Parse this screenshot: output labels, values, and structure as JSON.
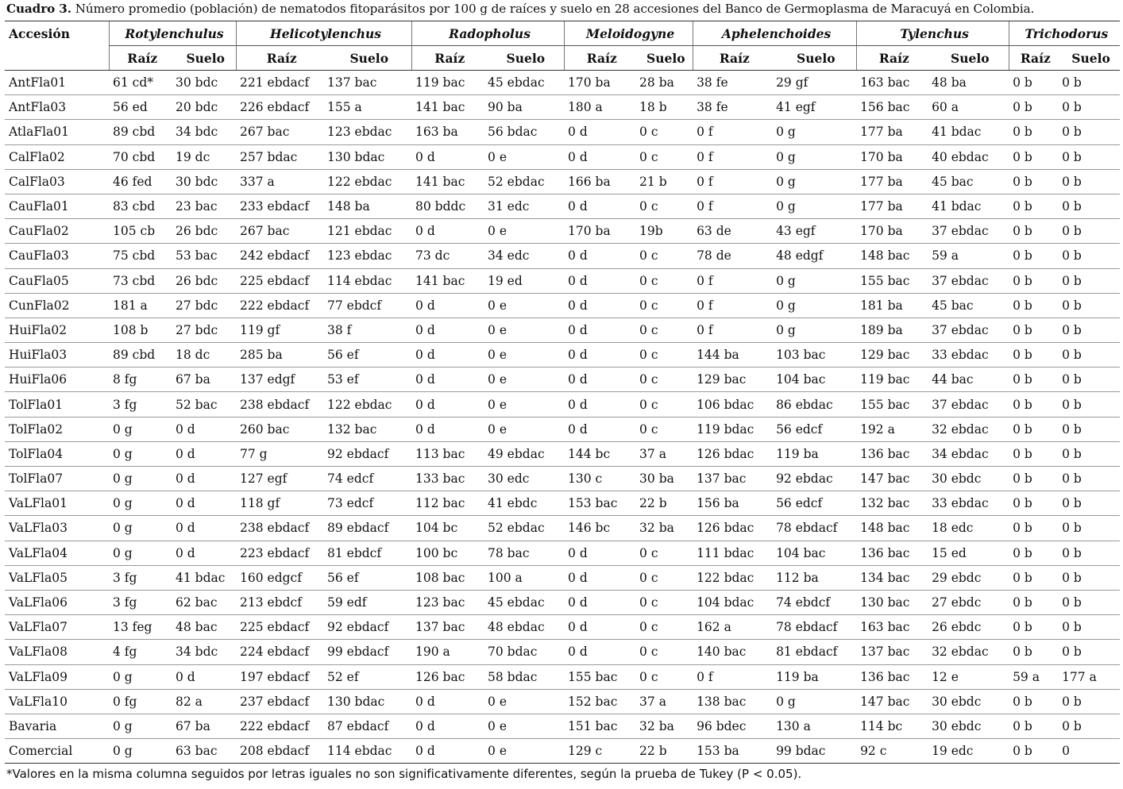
{
  "caption": {
    "label": "Cuadro 3.",
    "text": "Número promedio (población) de nematodos fitoparásitos por 100 g de raíces y suelo en 28 accesiones del Banco de Germoplasma de Maracuyá en Colombia."
  },
  "table": {
    "first_header": "Accesión",
    "genera": [
      "Rotylenchulus",
      "Helicotylenchus",
      "Radopholus",
      "Meloidogyne",
      "Aphelenchoides",
      "Tylenchus",
      "Trichodorus"
    ],
    "subheaders": [
      "Raíz",
      "Suelo",
      "Raíz",
      "Suelo",
      "Raíz",
      "Suelo",
      "Raíz",
      "Suelo",
      "Raíz",
      "Suelo",
      "Raíz",
      "Suelo",
      "Raíz",
      "Suelo"
    ],
    "rows": [
      [
        "AntFla01",
        "61 cd*",
        "30 bdc",
        "221 ebdacf",
        "137 bac",
        "119 bac",
        "45 ebdac",
        "170 ba",
        "28 ba",
        "38 fe",
        "29 gf",
        "163 bac",
        "48 ba",
        "0 b",
        "0 b"
      ],
      [
        "AntFla03",
        "56 ed",
        "20 bdc",
        "226 ebdacf",
        "155 a",
        "141 bac",
        "90 ba",
        "180 a",
        "18 b",
        "38 fe",
        "41 egf",
        "156 bac",
        "60 a",
        "0 b",
        "0 b"
      ],
      [
        "AtlaFla01",
        "89 cbd",
        "34 bdc",
        "267 bac",
        "123 ebdac",
        "163 ba",
        "56 bdac",
        "0 d",
        "0 c",
        "0 f",
        "0 g",
        "177 ba",
        "41 bdac",
        "0 b",
        "0 b"
      ],
      [
        "CalFla02",
        "70 cbd",
        "19 dc",
        "257 bdac",
        "130 bdac",
        "0 d",
        "0 e",
        "0 d",
        "0 c",
        "0 f",
        "0 g",
        "170 ba",
        "40 ebdac",
        "0 b",
        "0 b"
      ],
      [
        "CalFla03",
        "46 fed",
        "30 bdc",
        "337 a",
        "122 ebdac",
        "141 bac",
        "52 ebdac",
        "166 ba",
        "21 b",
        "0 f",
        "0 g",
        "177 ba",
        "45 bac",
        "0 b",
        "0 b"
      ],
      [
        "CauFla01",
        "83 cbd",
        "23 bac",
        "233 ebdacf",
        "148 ba",
        "80 bddc",
        "31 edc",
        "0 d",
        "0 c",
        "0 f",
        "0 g",
        "177 ba",
        "41 bdac",
        "0 b",
        "0 b"
      ],
      [
        "CauFla02",
        "105 cb",
        "26 bdc",
        "267 bac",
        "121 ebdac",
        "0 d",
        "0 e",
        "170 ba",
        "19b",
        "63 de",
        "43 egf",
        "170 ba",
        "37 ebdac",
        "0 b",
        "0 b"
      ],
      [
        "CauFla03",
        "75 cbd",
        "53 bac",
        "242 ebdacf",
        "123 ebdac",
        "73 dc",
        "34 edc",
        "0 d",
        "0 c",
        "78 de",
        "48 edgf",
        "148 bac",
        "59 a",
        "0 b",
        "0 b"
      ],
      [
        "CauFla05",
        "73 cbd",
        "26 bdc",
        "225 ebdacf",
        "114 ebdac",
        "141 bac",
        "19 ed",
        "0 d",
        "0 c",
        "0 f",
        "0 g",
        "155 bac",
        "37 ebdac",
        "0 b",
        "0 b"
      ],
      [
        "CunFla02",
        "181 a",
        "27 bdc",
        "222 ebdacf",
        "77 ebdcf",
        "0 d",
        "0 e",
        "0 d",
        "0 c",
        "0 f",
        "0 g",
        "181 ba",
        "45 bac",
        "0 b",
        "0 b"
      ],
      [
        "HuiFla02",
        "108 b",
        "27 bdc",
        "119 gf",
        "38 f",
        "0 d",
        "0 e",
        "0 d",
        "0 c",
        "0 f",
        "0 g",
        "189 ba",
        "37 ebdac",
        "0 b",
        "0 b"
      ],
      [
        "HuiFla03",
        "89 cbd",
        "18 dc",
        "285 ba",
        "56 ef",
        "0 d",
        "0 e",
        "0 d",
        "0 c",
        "144 ba",
        "103 bac",
        "129 bac",
        "33 ebdac",
        "0 b",
        "0 b"
      ],
      [
        "HuiFla06",
        "8 fg",
        "67 ba",
        "137 edgf",
        "53 ef",
        "0 d",
        "0 e",
        "0 d",
        "0 c",
        "129 bac",
        "104 bac",
        "119 bac",
        "44 bac",
        "0 b",
        "0 b"
      ],
      [
        "TolFla01",
        "3 fg",
        "52 bac",
        "238 ebdacf",
        "122 ebdac",
        "0 d",
        "0 e",
        "0 d",
        "0 c",
        "106 bdac",
        "86 ebdac",
        "155 bac",
        "37 ebdac",
        "0 b",
        "0 b"
      ],
      [
        "TolFla02",
        "0 g",
        "0 d",
        "260 bac",
        "132 bac",
        "0 d",
        "0 e",
        "0 d",
        "0 c",
        "119 bdac",
        "56 edcf",
        "192 a",
        "32 ebdac",
        "0 b",
        "0 b"
      ],
      [
        "TolFla04",
        "0 g",
        "0 d",
        "77 g",
        "92 ebdacf",
        "113 bac",
        "49 ebdac",
        "144 bc",
        "37 a",
        "126 bdac",
        "119 ba",
        "136 bac",
        "34 ebdac",
        "0 b",
        "0 b"
      ],
      [
        "TolFla07",
        "0 g",
        "0 d",
        "127 egf",
        "74 edcf",
        "133 bac",
        "30 edc",
        "130 c",
        "30 ba",
        "137 bac",
        "92 ebdac",
        "147 bac",
        "30 ebdc",
        "0 b",
        "0 b"
      ],
      [
        "VaLFla01",
        "0 g",
        "0 d",
        "118 gf",
        "73 edcf",
        "112 bac",
        "41 ebdc",
        "153 bac",
        "22 b",
        "156 ba",
        "56 edcf",
        "132 bac",
        "33 ebdac",
        "0 b",
        "0 b"
      ],
      [
        "VaLFla03",
        "0 g",
        "0 d",
        "238 ebdacf",
        "89 ebdacf",
        "104 bc",
        "52 ebdac",
        "146 bc",
        "32 ba",
        "126 bdac",
        "78 ebdacf",
        "148 bac",
        "18 edc",
        "0 b",
        "0 b"
      ],
      [
        "VaLFla04",
        "0 g",
        "0 d",
        "223 ebdacf",
        "81 ebdcf",
        "100 bc",
        "78 bac",
        "0 d",
        "0 c",
        "111 bdac",
        "104 bac",
        "136 bac",
        "15 ed",
        "0 b",
        "0 b"
      ],
      [
        "VaLFla05",
        "3 fg",
        "41 bdac",
        "160 edgcf",
        "56 ef",
        "108 bac",
        "100 a",
        "0 d",
        "0 c",
        "122 bdac",
        "112 ba",
        "134 bac",
        "29 ebdc",
        "0 b",
        "0 b"
      ],
      [
        "VaLFla06",
        "3 fg",
        "62 bac",
        "213 ebdcf",
        "59 edf",
        "123 bac",
        "45 ebdac",
        "0 d",
        "0 c",
        "104 bdac",
        "74 ebdcf",
        "130 bac",
        "27 ebdc",
        "0 b",
        "0 b"
      ],
      [
        "VaLFla07",
        "13 feg",
        "48 bac",
        "225 ebdacf",
        "92 ebdacf",
        "137 bac",
        "48 ebdac",
        "0 d",
        "0 c",
        "162 a",
        "78 ebdacf",
        "163 bac",
        "26 ebdc",
        "0 b",
        "0 b"
      ],
      [
        "VaLFla08",
        "4 fg",
        "34 bdc",
        "224 ebdacf",
        "99 ebdacf",
        "190 a",
        "70 bdac",
        "0 d",
        "0 c",
        "140 bac",
        "81 ebdacf",
        "137 bac",
        "32 ebdac",
        "0 b",
        "0 b"
      ],
      [
        "VaLFla09",
        "0 g",
        "0 d",
        "197 ebdacf",
        "52 ef",
        "126 bac",
        "58 bdac",
        "155 bac",
        "0 c",
        "0 f",
        "119 ba",
        "136 bac",
        "12 e",
        "59 a",
        "177 a"
      ],
      [
        "VaLFla10",
        "0 fg",
        "82 a",
        "237 ebdacf",
        "130 bdac",
        "0 d",
        "0 e",
        "152 bac",
        "37 a",
        "138 bac",
        "0 g",
        "147 bac",
        "30 ebdc",
        "0 b",
        "0 b"
      ],
      [
        "Bavaria",
        "0 g",
        "67 ba",
        "222 ebdacf",
        "87 ebdacf",
        "0 d",
        "0 e",
        "151 bac",
        "32 ba",
        "96 bdec",
        "130 a",
        "114 bc",
        "30 ebdc",
        "0 b",
        "0 b"
      ],
      [
        "Comercial",
        "0 g",
        "63 bac",
        "208 ebdacf",
        "114 ebdac",
        "0 d",
        "0 e",
        "129 c",
        "22 b",
        "153 ba",
        "99 bdac",
        "92 c",
        "19 edc",
        "0 b",
        "0"
      ]
    ]
  },
  "footnote": "*Valores en la misma columna seguidos por letras iguales no son significativamente diferentes, según la prueba de Tukey (P < 0.05)."
}
